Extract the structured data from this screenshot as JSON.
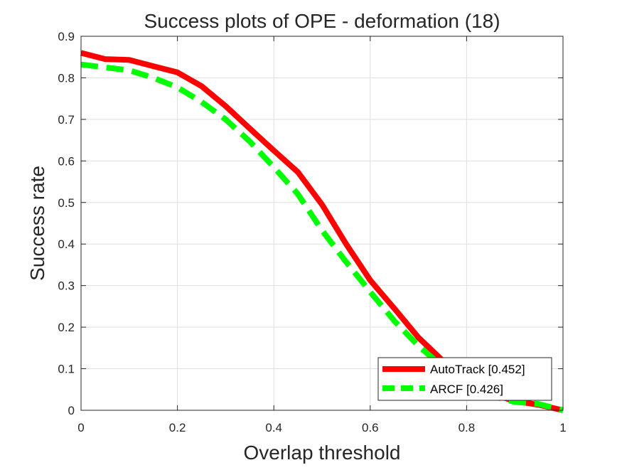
{
  "chart_data": {
    "type": "line",
    "title": "Success plots of OPE - deformation (18)",
    "xlabel": "Overlap threshold",
    "ylabel": "Success rate",
    "xlim": [
      0,
      1
    ],
    "ylim": [
      0,
      0.9
    ],
    "xticks": [
      "0",
      "0.2",
      "0.4",
      "0.6",
      "0.8",
      "1"
    ],
    "yticks": [
      "0",
      "0.1",
      "0.2",
      "0.3",
      "0.4",
      "0.5",
      "0.6",
      "0.7",
      "0.8",
      "0.9"
    ],
    "grid": true,
    "legend_position": "bottom-right",
    "x": [
      0,
      0.05,
      0.1,
      0.15,
      0.2,
      0.25,
      0.3,
      0.35,
      0.4,
      0.45,
      0.5,
      0.55,
      0.6,
      0.65,
      0.7,
      0.75,
      0.8,
      0.85,
      0.9,
      0.95,
      1.0
    ],
    "series": [
      {
        "name": "AutoTrack [0.452]",
        "color": "#ff0000",
        "style": "solid",
        "values": [
          0.86,
          0.845,
          0.843,
          0.828,
          0.813,
          0.78,
          0.732,
          0.678,
          0.625,
          0.573,
          0.495,
          0.4,
          0.313,
          0.245,
          0.175,
          0.12,
          0.07,
          0.04,
          0.022,
          0.013,
          0.0
        ]
      },
      {
        "name": "ARCF [0.426]",
        "color": "#00ff00",
        "style": "dashed",
        "values": [
          0.832,
          0.825,
          0.818,
          0.8,
          0.777,
          0.742,
          0.7,
          0.647,
          0.585,
          0.52,
          0.433,
          0.357,
          0.285,
          0.215,
          0.155,
          0.105,
          0.065,
          0.035,
          0.02,
          0.015,
          0.0
        ]
      }
    ]
  }
}
